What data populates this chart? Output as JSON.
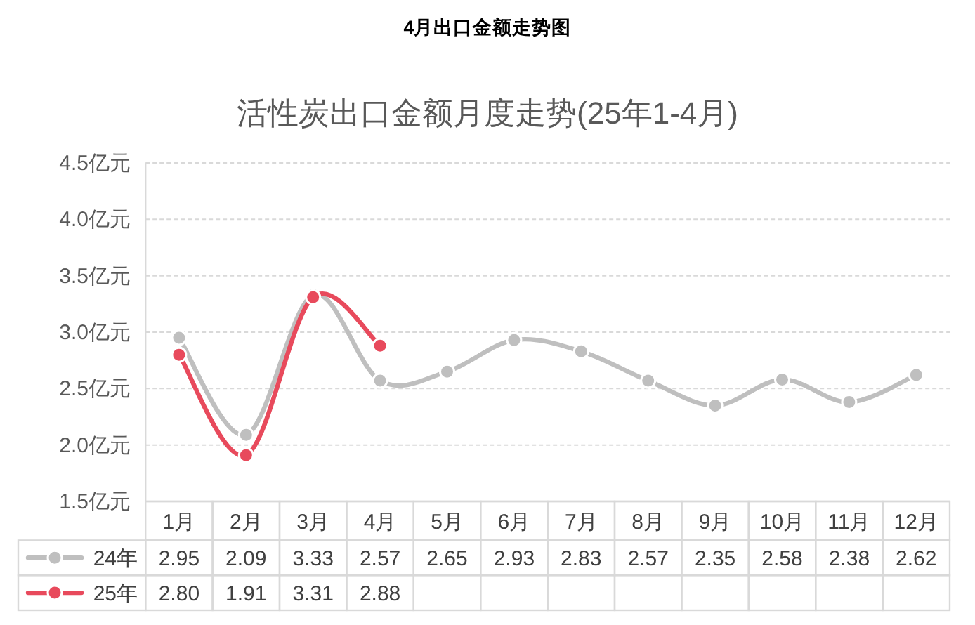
{
  "chart_data": {
    "type": "line",
    "title": "4月出口金额走势图",
    "subtitle": "活性炭出口金额月度走势(25年1-4月)",
    "categories": [
      "1月",
      "2月",
      "3月",
      "4月",
      "5月",
      "6月",
      "7月",
      "8月",
      "9月",
      "10月",
      "11月",
      "12月"
    ],
    "series": [
      {
        "name": "24年",
        "color": "#bfbfbf",
        "values": [
          2.95,
          2.09,
          3.33,
          2.57,
          2.65,
          2.93,
          2.83,
          2.57,
          2.35,
          2.58,
          2.38,
          2.62
        ],
        "value_labels": [
          "2.95",
          "2.09",
          "3.33",
          "2.57",
          "2.65",
          "2.93",
          "2.83",
          "2.57",
          "2.35",
          "2.58",
          "2.38",
          "2.62"
        ]
      },
      {
        "name": "25年",
        "color": "#e84a5c",
        "values": [
          2.8,
          1.91,
          3.31,
          2.88,
          null,
          null,
          null,
          null,
          null,
          null,
          null,
          null
        ],
        "value_labels": [
          "2.80",
          "1.91",
          "3.31",
          "2.88",
          null,
          null,
          null,
          null,
          null,
          null,
          null,
          null
        ]
      }
    ],
    "ylim": [
      1.5,
      4.5
    ],
    "yticks": [
      {
        "value": 1.5,
        "label": "1.5亿元"
      },
      {
        "value": 2.0,
        "label": "2.0亿元"
      },
      {
        "value": 2.5,
        "label": "2.5亿元"
      },
      {
        "value": 3.0,
        "label": "3.0亿元"
      },
      {
        "value": 3.5,
        "label": "3.5亿元"
      },
      {
        "value": 4.0,
        "label": "4.0亿元"
      },
      {
        "value": 4.5,
        "label": "4.5亿元"
      }
    ],
    "grid": "y",
    "legend": "bottom left",
    "marker": "circle",
    "line_style": "solid"
  }
}
